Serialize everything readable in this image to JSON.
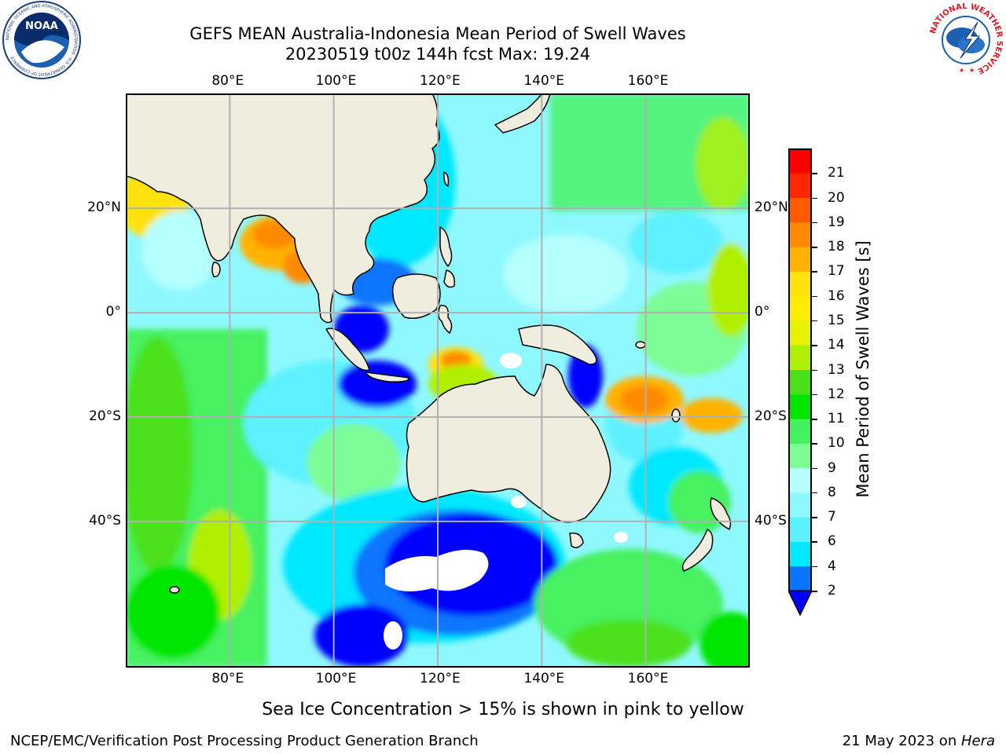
{
  "header": {
    "title_line1": "GEFS MEAN Australia-Indonesia Mean Period of Swell Waves",
    "title_line2": "20230519 t00z 144h fcst   Max: 19.24"
  },
  "logos": {
    "left": "NOAA",
    "left_ring": "NATIONAL OCEANIC AND ATMOSPHERIC ADMINISTRATION · U.S. DEPARTMENT OF COMMERCE",
    "right_ring": "NATIONAL WEATHER SERVICE"
  },
  "map": {
    "lon_labels": [
      "80°E",
      "100°E",
      "120°E",
      "140°E",
      "160°E"
    ],
    "lat_labels": [
      "20°N",
      "0°",
      "20°S",
      "40°S"
    ],
    "extent": {
      "lon": [
        60,
        180
      ],
      "lat": [
        -68,
        42
      ]
    },
    "colors": {
      "land": "#efedde",
      "grid": "#b0b0b0",
      "no_data": "#ffffff"
    }
  },
  "colorbar": {
    "levels": [
      "2",
      "4",
      "6",
      "7",
      "8",
      "9",
      "10",
      "11",
      "12",
      "13",
      "14",
      "15",
      "16",
      "17",
      "18",
      "19",
      "20",
      "21"
    ],
    "colors": [
      "#0a75ff",
      "#00e8ff",
      "#5df1ff",
      "#8ff8ff",
      "#b5ffff",
      "#7dfd96",
      "#46f15f",
      "#00e600",
      "#4be11a",
      "#b1ef06",
      "#e6f200",
      "#ffed00",
      "#ffe20a",
      "#ffb200",
      "#ff8a00",
      "#ff5a00",
      "#ff2600",
      "#ff0000"
    ],
    "under_color": "#0000ff",
    "label": "Mean Period of Swell Waves [s]"
  },
  "footer": {
    "note": "Sea Ice Concentration > 15% is shown in pink to yellow",
    "credit_left": "NCEP/EMC/Verification Post Processing Product Generation Branch",
    "date": "21 May 2023 on ",
    "host": "Hera"
  }
}
